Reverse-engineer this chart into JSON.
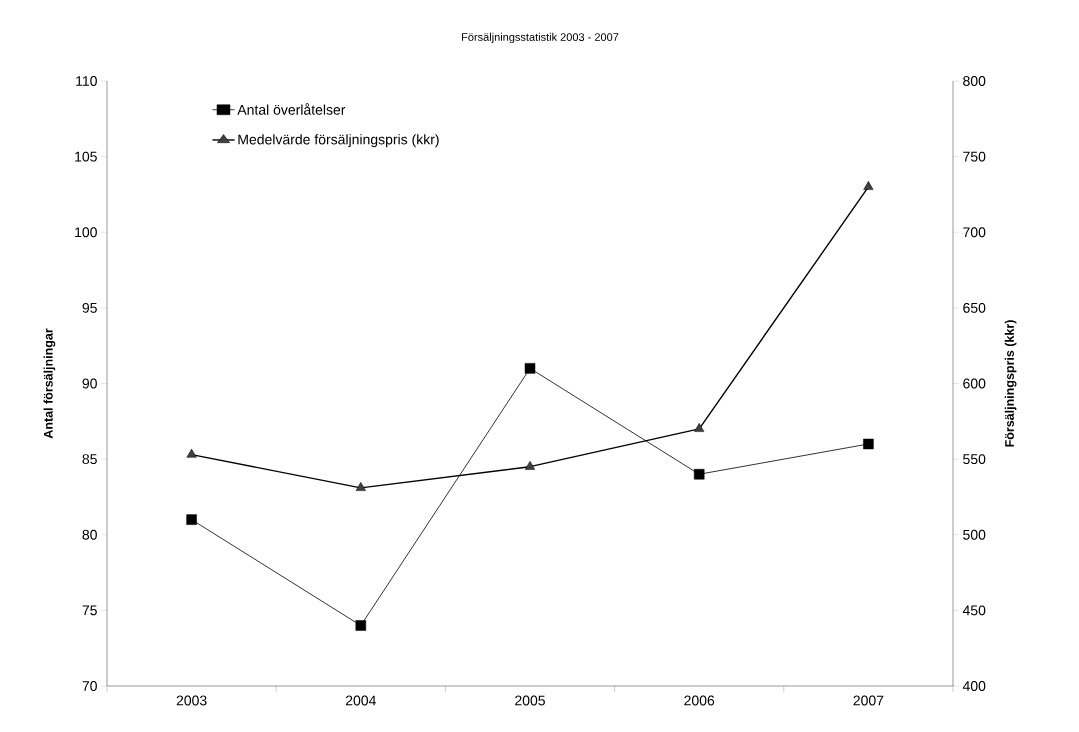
{
  "chart_data": {
    "type": "line",
    "title": "Försäljningsstatistik 2003 - 2007",
    "ylabel": "Antal försäljningar",
    "y2label": "Försäljningspris (kkr)",
    "categories": [
      "2003",
      "2004",
      "2005",
      "2006",
      "2007"
    ],
    "series": [
      {
        "name": "Antal överlåtelser",
        "color": "#000000",
        "marker": "square",
        "values": [
          81,
          74,
          91,
          84,
          86
        ]
      },
      {
        "name": "Medelvärde försäljningspris (kkr)",
        "color": "#000000",
        "marker": "triangle",
        "axis": "y2",
        "values": [
          553,
          531,
          545,
          570,
          730
        ]
      }
    ],
    "ylim": [
      70,
      110
    ],
    "yticks": [
      70,
      75,
      80,
      85,
      90,
      95,
      100,
      105,
      110
    ],
    "y2lim": [
      400,
      800
    ],
    "y2ticks": [
      400,
      450,
      500,
      550,
      600,
      650,
      700,
      750,
      800
    ],
    "legend": "top left",
    "grid": false
  }
}
